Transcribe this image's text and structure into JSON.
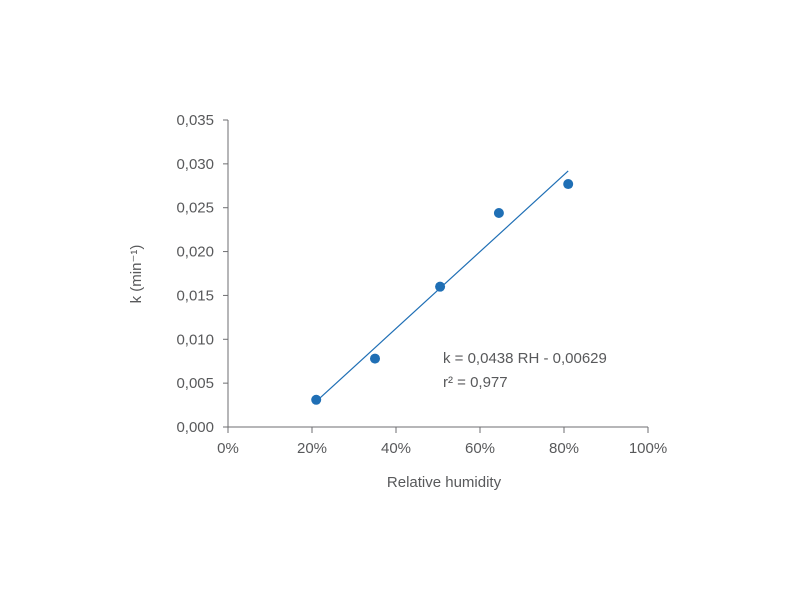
{
  "chart_data": {
    "type": "scatter",
    "title": "",
    "xlabel": "Relative humidity",
    "ylabel": "k (min⁻¹)",
    "xlim": [
      0,
      1
    ],
    "ylim": [
      0,
      0.035
    ],
    "x_ticks": [
      0,
      0.2,
      0.4,
      0.6,
      0.8,
      1.0
    ],
    "x_tick_labels": [
      "0%",
      "20%",
      "40%",
      "60%",
      "80%",
      "100%"
    ],
    "y_ticks": [
      0,
      0.005,
      0.01,
      0.015,
      0.02,
      0.025,
      0.03,
      0.035
    ],
    "y_tick_labels": [
      "0,000",
      "0,005",
      "0,010",
      "0,015",
      "0,020",
      "0,025",
      "0,030",
      "0,035"
    ],
    "grid": false,
    "series": [
      {
        "x": [
          0.21,
          0.35,
          0.505,
          0.645,
          0.81
        ],
        "y": [
          0.0031,
          0.0078,
          0.016,
          0.0244,
          0.0277
        ],
        "color": "#1f6fb5"
      }
    ],
    "trendline": {
      "slope": 0.0438,
      "intercept": -0.00629,
      "x_range": [
        0.21,
        0.81
      ],
      "color": "#1f6fb5"
    },
    "annotations": [
      "k = 0,0438 RH - 0,00629",
      "r² = 0,977"
    ],
    "axis_color": "#6d6e71"
  }
}
